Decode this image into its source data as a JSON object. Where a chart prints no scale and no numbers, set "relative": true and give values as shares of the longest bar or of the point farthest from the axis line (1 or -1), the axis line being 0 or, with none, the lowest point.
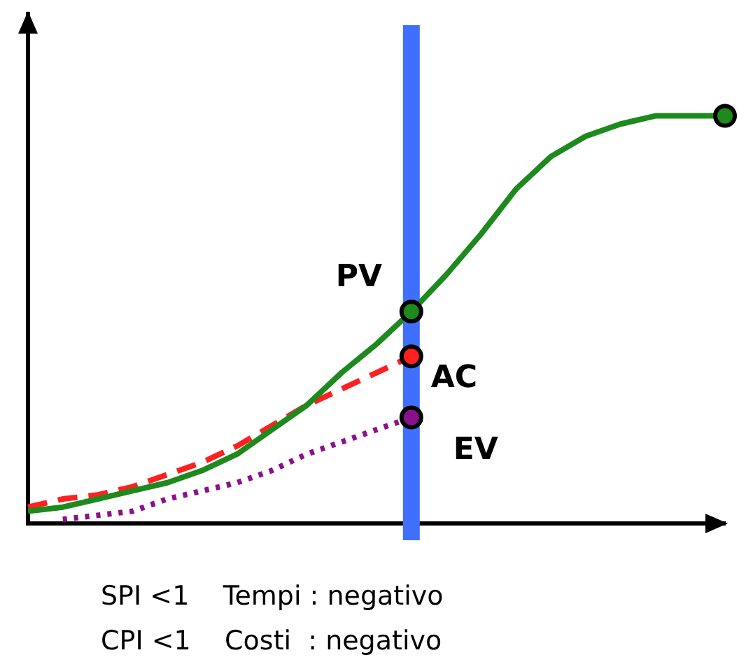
{
  "chart_data": {
    "type": "line",
    "relative": true,
    "categories": [
      null,
      null,
      null,
      null,
      null,
      null,
      null,
      null,
      null,
      null,
      null,
      null,
      null,
      null,
      null,
      null,
      null,
      null,
      null,
      null,
      null
    ],
    "tick_labels": false,
    "grid": false,
    "legend": false,
    "series": [
      {
        "name": "PV",
        "color": "#1e8a1e",
        "line_style": "solid",
        "values": [
          0.03,
          0.04,
          0.06,
          0.08,
          0.1,
          0.13,
          0.17,
          0.23,
          0.29,
          0.37,
          0.44,
          0.52,
          0.61,
          0.71,
          0.82,
          0.9,
          0.95,
          0.98,
          1,
          1,
          1
        ]
      },
      {
        "name": "AC",
        "color": "#ff2020",
        "line_style": "dashed",
        "values": [
          0.04,
          0.06,
          0.07,
          0.09,
          0.12,
          0.15,
          0.19,
          0.24,
          0.29,
          0.33,
          0.37,
          0.41,
          null,
          null,
          null,
          null,
          null,
          null,
          null,
          null,
          null
        ]
      },
      {
        "name": "EV",
        "color": "#8b108b",
        "line_style": "dotted",
        "values": [
          null,
          0.01,
          0.02,
          0.03,
          0.06,
          0.08,
          0.1,
          0.13,
          0.17,
          0.2,
          0.23,
          0.26,
          null,
          null,
          null,
          null,
          null,
          null,
          null,
          null,
          null
        ]
      }
    ],
    "annotations": [
      "SPI <1    Tempi : negativo",
      "CPI <1    Costi  : negativo"
    ]
  }
}
